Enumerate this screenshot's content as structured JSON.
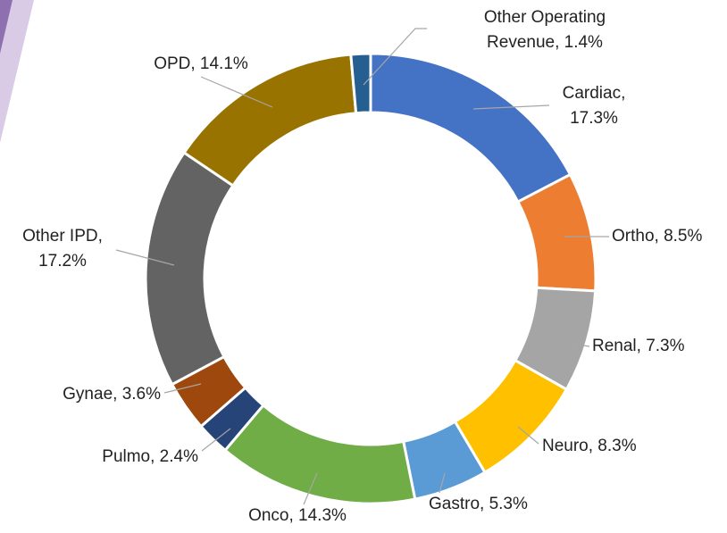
{
  "chart_data": {
    "type": "pie",
    "values": [
      17.3,
      8.5,
      7.3,
      8.3,
      5.3,
      14.3,
      2.4,
      3.6,
      17.2,
      14.1,
      1.4
    ],
    "value_labels": [
      [
        "Cardiac,",
        "17.3%"
      ],
      [
        "Ortho, 8.5%"
      ],
      [
        "Renal, 7.3%"
      ],
      [
        "Neuro, 8.3%"
      ],
      [
        "Gastro, 5.3%"
      ],
      [
        "Onco, 14.3%"
      ],
      [
        "Pulmo, 2.4%"
      ],
      [
        "Gynae, 3.6%"
      ],
      [
        "Other IPD,",
        "17.2%"
      ],
      [
        "OPD, 14.1%"
      ],
      [
        "Other Operating",
        "Revenue, 1.4%"
      ]
    ],
    "colors": [
      "#4472c4",
      "#ed7d31",
      "#a5a5a5",
      "#ffc000",
      "#5b9bd5",
      "#70ad47",
      "#264478",
      "#9e480e",
      "#636363",
      "#997300",
      "#255e91"
    ],
    "donut": true
  }
}
